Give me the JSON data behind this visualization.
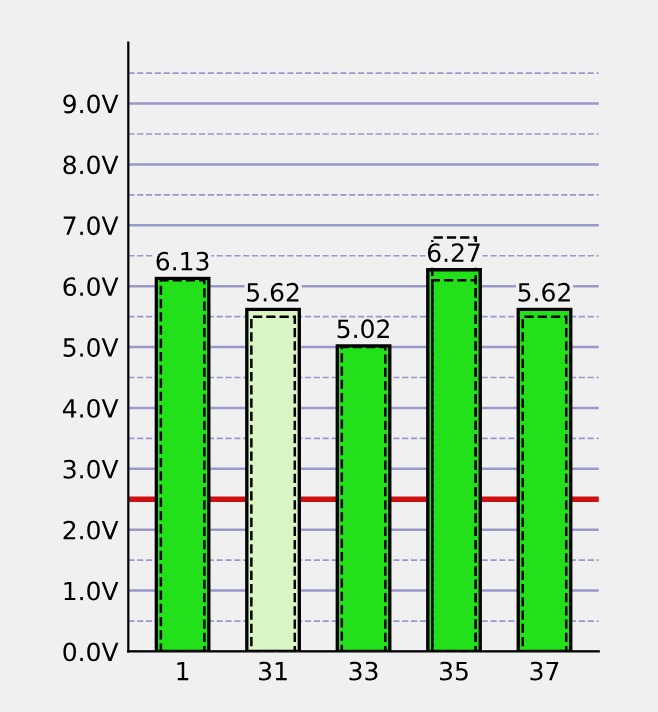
{
  "chart_data": {
    "type": "bar",
    "categories": [
      "1",
      "31",
      "33",
      "35",
      "37"
    ],
    "series": [
      {
        "colors": [
          "#22e01a",
          "#d9f5c4",
          "#22e01a",
          "#22e01a",
          "#22e01a"
        ],
        "values": [
          6.13,
          5.62,
          5.02,
          6.27,
          5.62
        ]
      },
      {
        "line_style": "dashed",
        "color": "#000000",
        "values": [
          6.1,
          5.5,
          5.0,
          6.1,
          5.5
        ]
      },
      {
        "line_style": "dashed",
        "color": "#000000",
        "values": [
          null,
          null,
          null,
          6.8,
          null
        ]
      }
    ],
    "value_labels": [
      "6.13",
      "5.62",
      "5.02",
      "6.27",
      "5.62"
    ],
    "ylim": [
      0,
      10
    ],
    "yticks": [
      {
        "value": 0,
        "label": "0.0V"
      },
      {
        "value": 0.5,
        "label": null
      },
      {
        "value": 1,
        "label": "1.0V"
      },
      {
        "value": 1.5,
        "label": null
      },
      {
        "value": 2,
        "label": "2.0V"
      },
      {
        "value": 2.5,
        "label": null
      },
      {
        "value": 3,
        "label": "3.0V"
      },
      {
        "value": 3.5,
        "label": null
      },
      {
        "value": 4,
        "label": "4.0V"
      },
      {
        "value": 4.5,
        "label": null
      },
      {
        "value": 5,
        "label": "5.0V"
      },
      {
        "value": 5.5,
        "label": null
      },
      {
        "value": 6,
        "label": "6.0V"
      },
      {
        "value": 6.5,
        "label": null
      },
      {
        "value": 7,
        "label": "7.0V"
      },
      {
        "value": 7.5,
        "label": null
      },
      {
        "value": 8,
        "label": "8.0V"
      },
      {
        "value": 8.5,
        "label": null
      },
      {
        "value": 9,
        "label": "9.0V"
      },
      {
        "value": 9.5,
        "label": null
      }
    ],
    "grid": "y",
    "ref_lines": [
      {
        "axis": "y",
        "value": 2.5,
        "color": "#cc1111"
      }
    ]
  }
}
